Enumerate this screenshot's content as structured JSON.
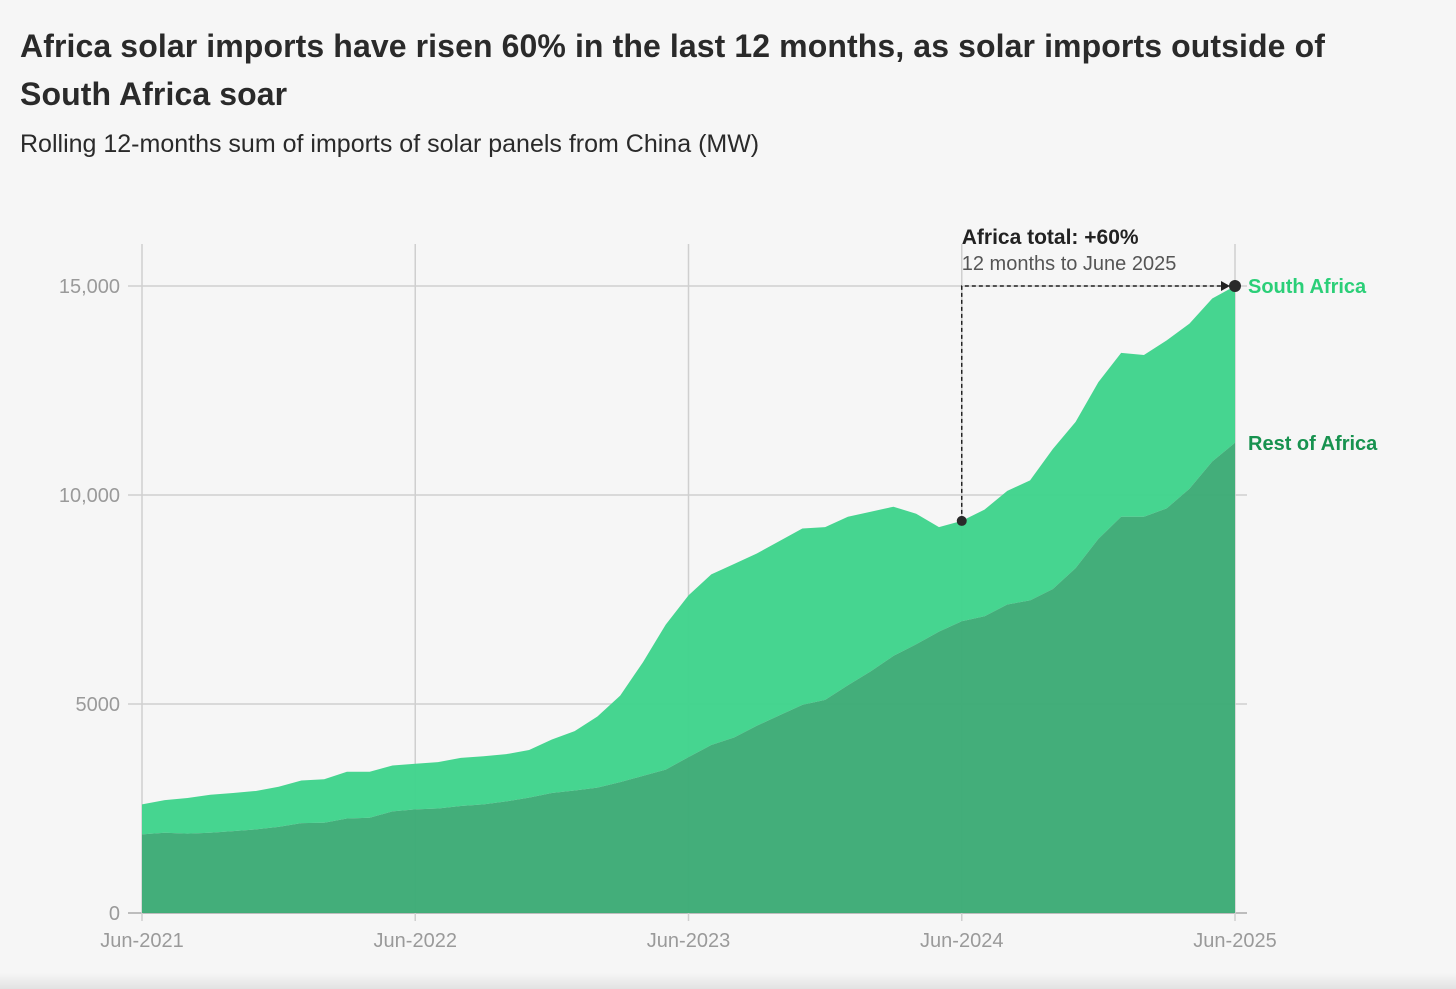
{
  "chart_data": {
    "type": "area",
    "stacked": true,
    "title": "Africa solar imports have risen 60% in the last 12 months, as solar imports outside of South Africa soar",
    "subtitle": "Rolling 12-months sum of imports of solar panels from China (MW)",
    "xlabel": "",
    "ylabel": "",
    "x_start": "Jun-2021",
    "x_end": "Jun-2025",
    "x_step": "month",
    "x_ticks": [
      "Jun-2021",
      "Jun-2022",
      "Jun-2023",
      "Jun-2024",
      "Jun-2025"
    ],
    "y_ticks": [
      {
        "value": 0,
        "label": "0"
      },
      {
        "value": 5000,
        "label": "5000"
      },
      {
        "value": 10000,
        "label": "10,000"
      },
      {
        "value": 15000,
        "label": "15,000"
      }
    ],
    "ylim": [
      0,
      15000
    ],
    "grid": true,
    "series": [
      {
        "name": "Rest of Africa",
        "color": "#3dab76",
        "label_color": "#17924f",
        "values": [
          1880,
          1920,
          1900,
          1920,
          1960,
          2000,
          2060,
          2150,
          2160,
          2260,
          2280,
          2430,
          2480,
          2500,
          2560,
          2600,
          2670,
          2760,
          2870,
          2930,
          3000,
          3130,
          3280,
          3430,
          3730,
          4020,
          4200,
          4480,
          4730,
          4980,
          5100,
          5450,
          5780,
          6150,
          6430,
          6730,
          6980,
          7100,
          7380,
          7480,
          7750,
          8250,
          8950,
          9480,
          9480,
          9680,
          10150,
          10800,
          11250
        ]
      },
      {
        "name": "South Africa",
        "color": "#40d48c",
        "label_color": "#2bcf78",
        "stacked_total_values": [
          2600,
          2700,
          2750,
          2830,
          2870,
          2920,
          3020,
          3170,
          3200,
          3380,
          3380,
          3530,
          3570,
          3610,
          3710,
          3750,
          3800,
          3900,
          4150,
          4350,
          4700,
          5200,
          6000,
          6900,
          7600,
          8100,
          8350,
          8600,
          8900,
          9200,
          9230,
          9480,
          9600,
          9720,
          9550,
          9230,
          9380,
          9650,
          10100,
          10350,
          11100,
          11750,
          12700,
          13400,
          13350,
          13700,
          14100,
          14700,
          15000
        ]
      }
    ],
    "annotation": {
      "title": "Africa total: +60%",
      "text": "12 months to June 2025",
      "from_index": 36,
      "to_index": 48
    }
  }
}
